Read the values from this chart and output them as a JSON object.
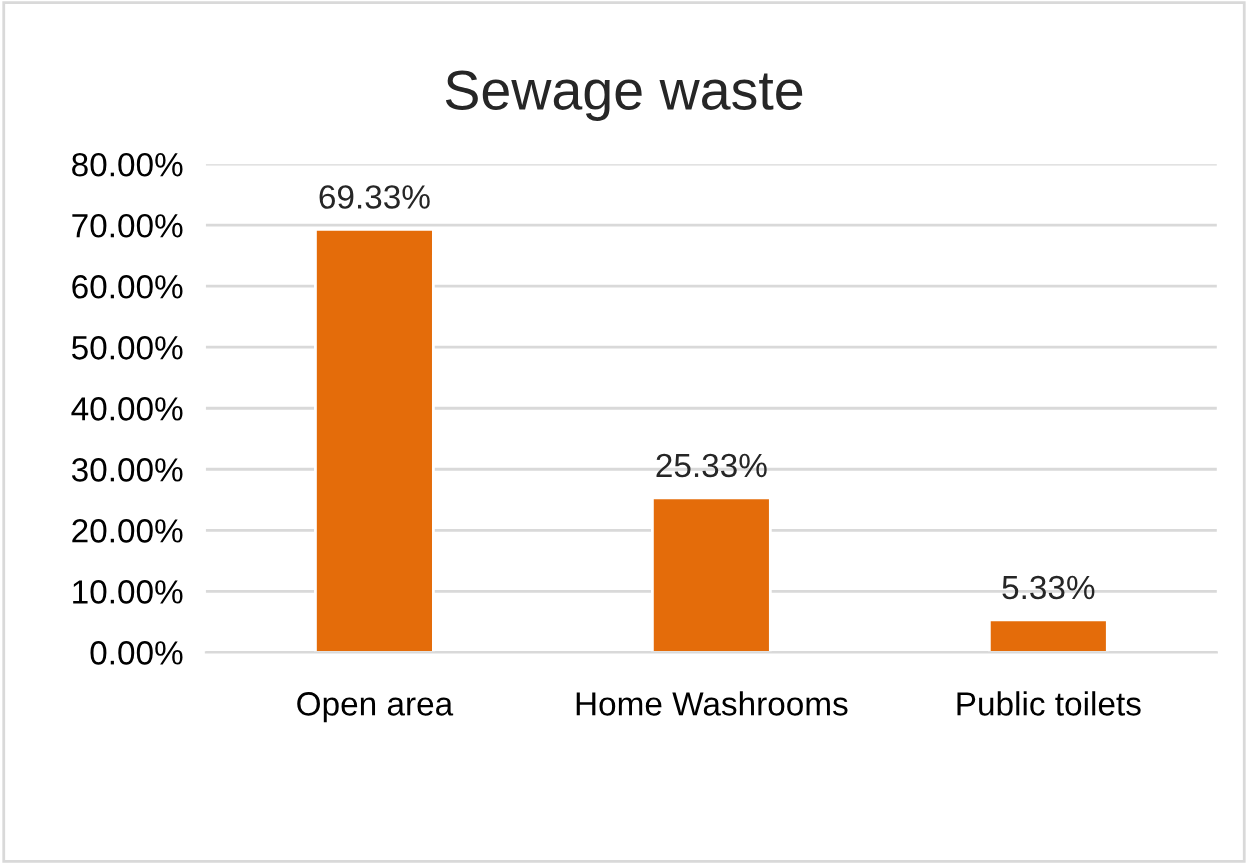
{
  "chart_data": {
    "type": "bar",
    "title": "Sewage waste",
    "categories": [
      "Open area",
      "Home Washrooms",
      "Public toilets"
    ],
    "values": [
      69.33,
      25.33,
      5.33
    ],
    "color": "#e46c0a",
    "value_labels": [
      "69.33%",
      "25.33%",
      "5.33%"
    ],
    "ylim": [
      0,
      80
    ],
    "yticks": [
      {
        "value": 0,
        "label": "0.00%"
      },
      {
        "value": 10,
        "label": "10.00%"
      },
      {
        "value": 20,
        "label": "20.00%"
      },
      {
        "value": 30,
        "label": "30.00%"
      },
      {
        "value": 40,
        "label": "40.00%"
      },
      {
        "value": 50,
        "label": "50.00%"
      },
      {
        "value": 60,
        "label": "60.00%"
      },
      {
        "value": 70,
        "label": "70.00%"
      },
      {
        "value": 80,
        "label": "80.00%"
      }
    ],
    "grid": "y",
    "legend": false
  }
}
